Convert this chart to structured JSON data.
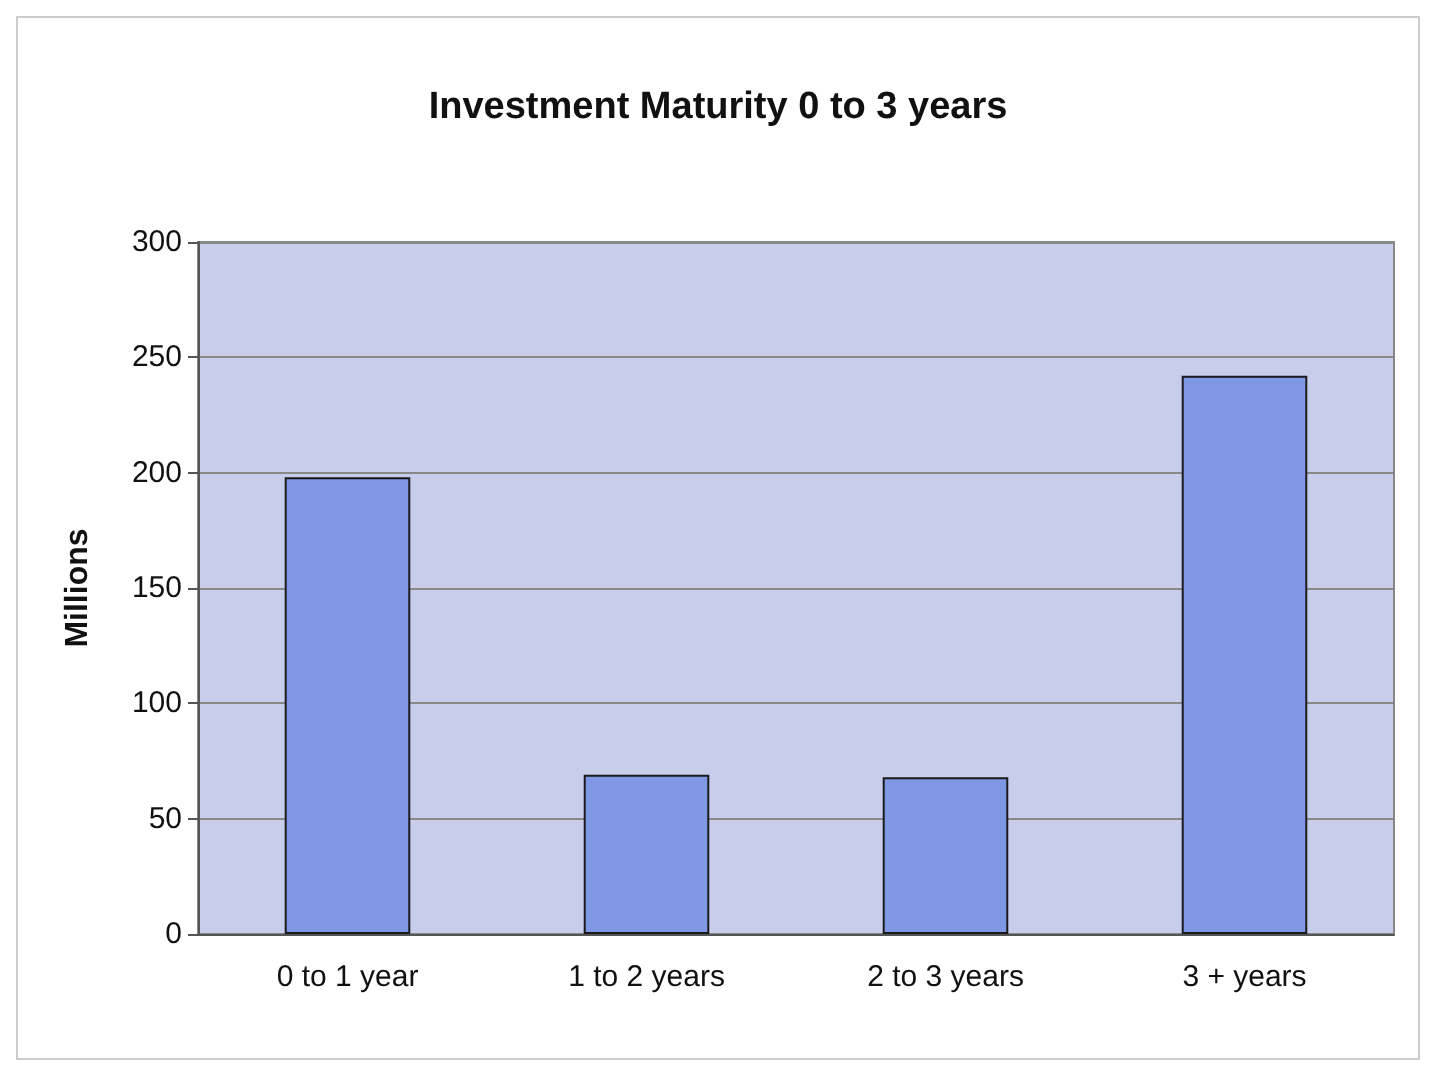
{
  "chart_data": {
    "type": "bar",
    "title": "Investment Maturity 0 to 3 years",
    "ylabel": "Millions",
    "categories": [
      "0 to 1 year",
      "1 to 2 years",
      "2 to 3 years",
      "3 + years"
    ],
    "values": [
      198,
      69,
      68,
      242
    ],
    "color": "#8097e6",
    "ylim": [
      0,
      300
    ],
    "yticks": [
      0,
      50,
      100,
      150,
      200,
      250,
      300
    ],
    "grid": "y"
  }
}
